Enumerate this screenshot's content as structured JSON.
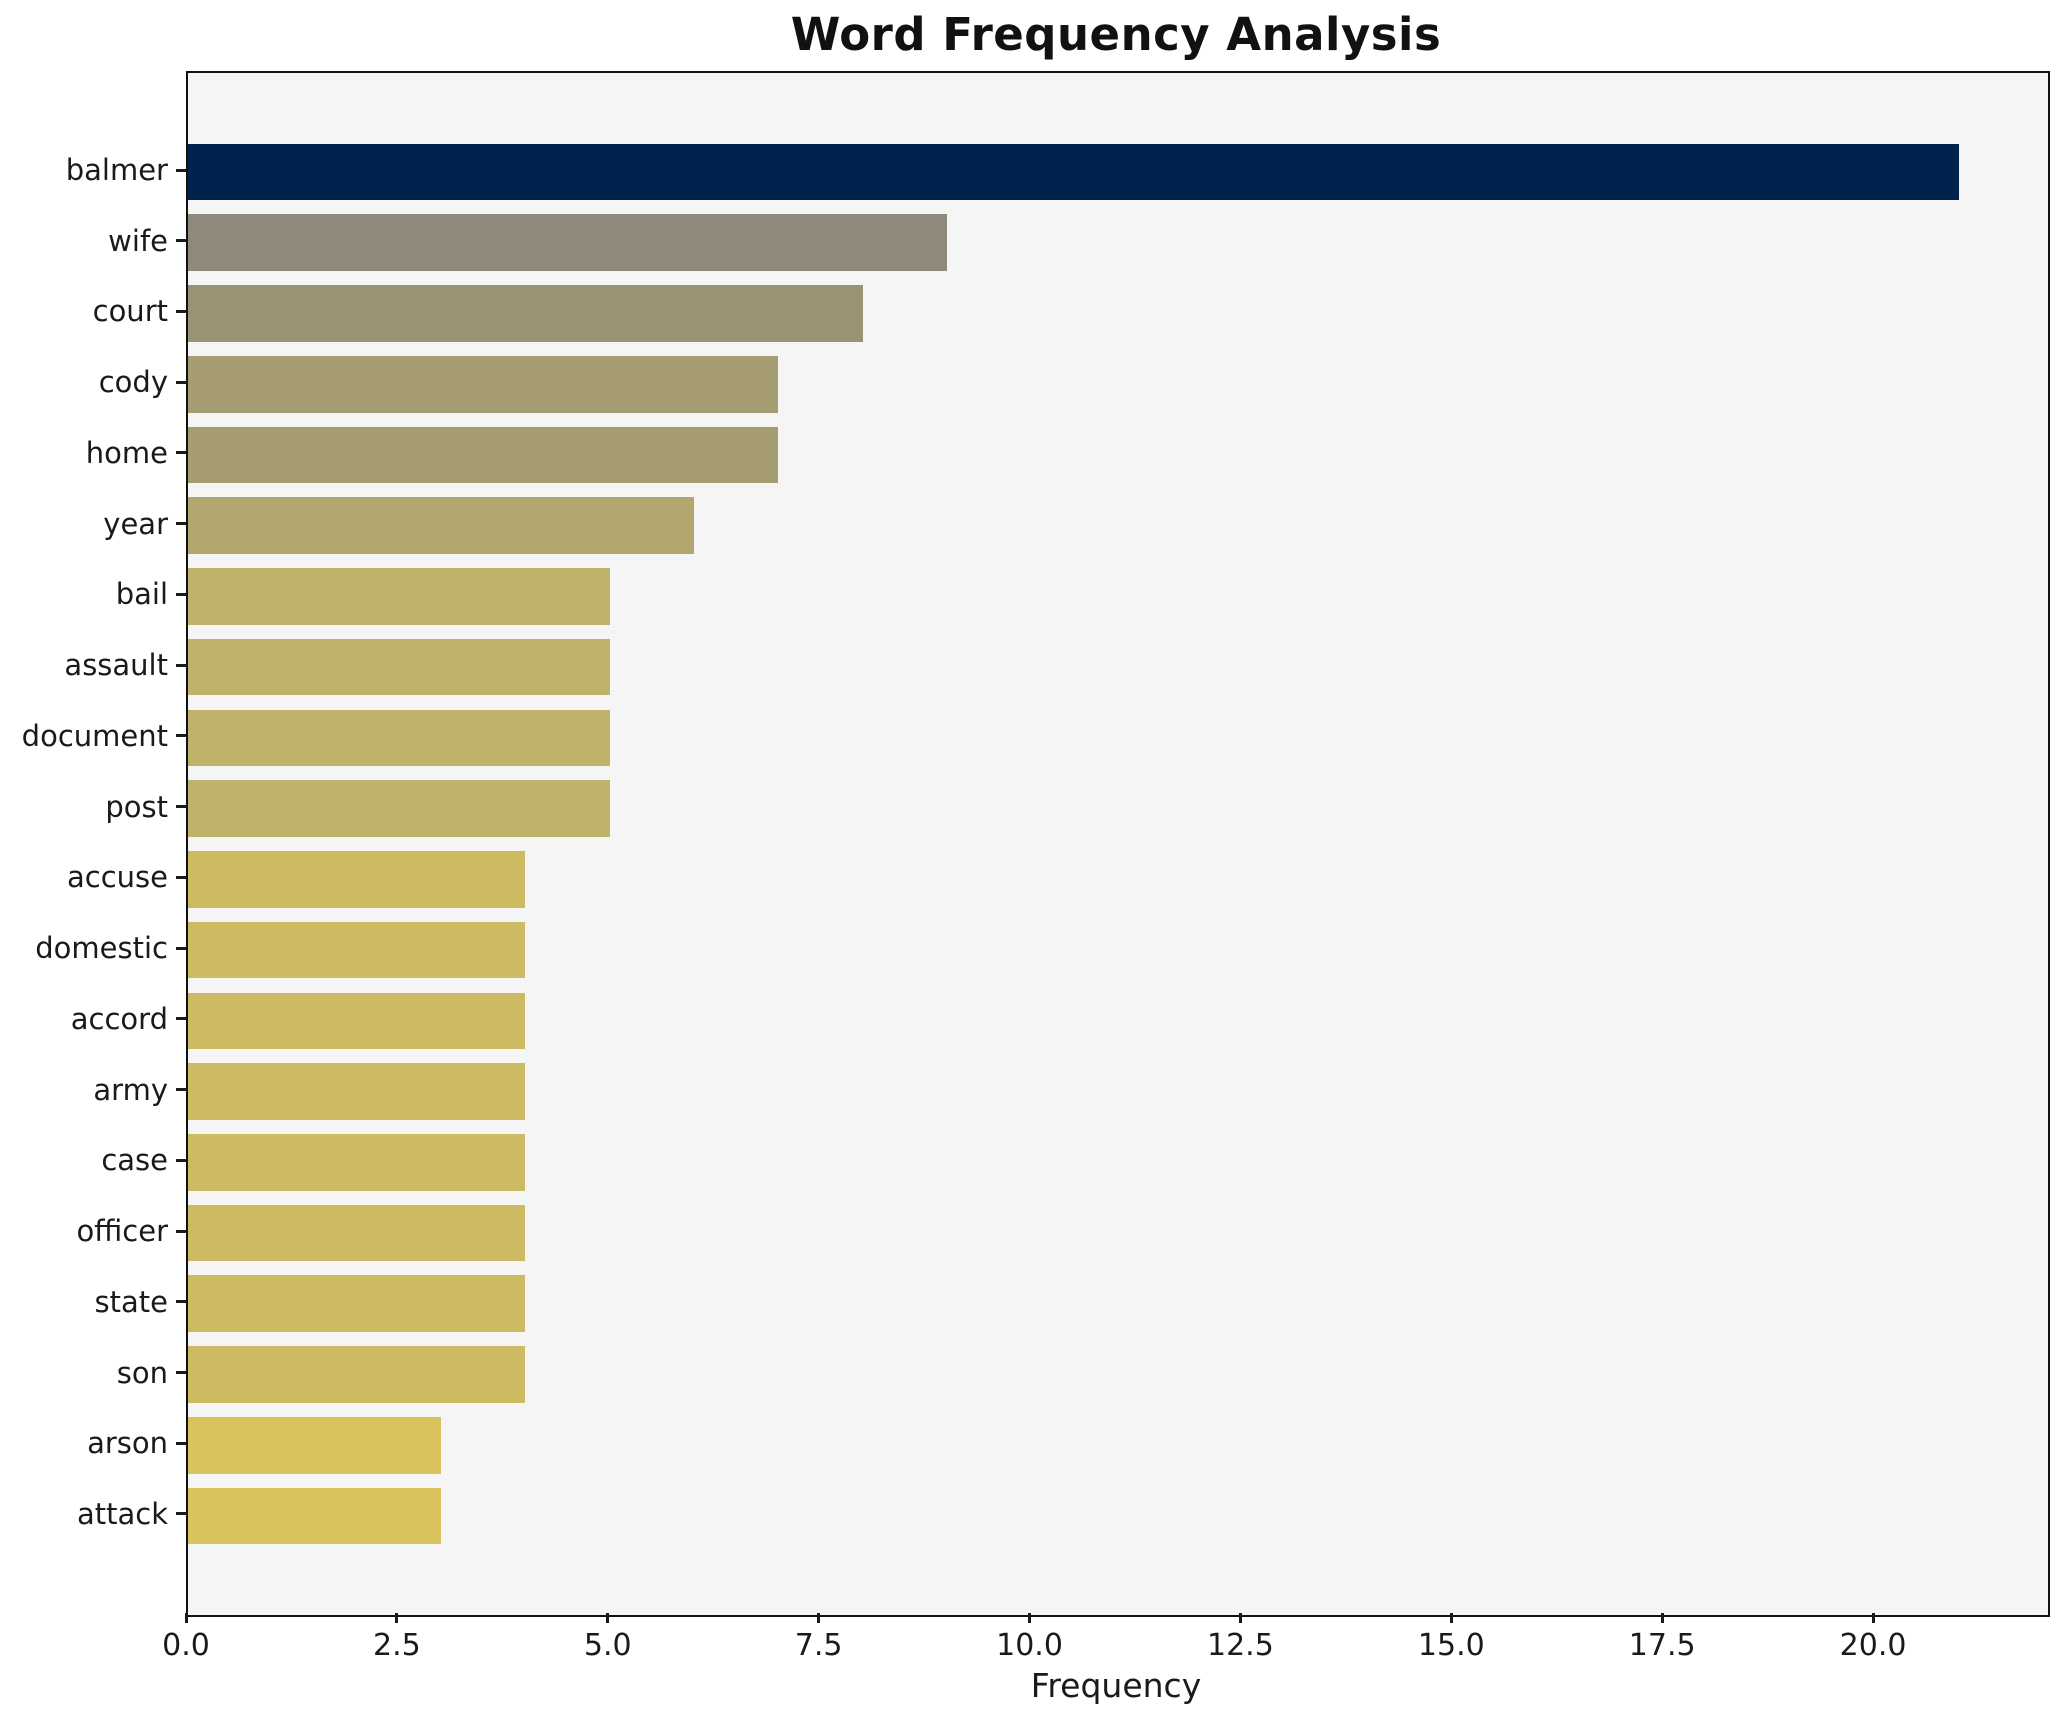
{
  "title": "Word Frequency Analysis",
  "chart_data": {
    "type": "bar",
    "orientation": "horizontal",
    "title": "Word Frequency Analysis",
    "xlabel": "Frequency",
    "ylabel": "",
    "categories": [
      "balmer",
      "wife",
      "court",
      "cody",
      "home",
      "year",
      "bail",
      "assault",
      "document",
      "post",
      "accuse",
      "domestic",
      "accord",
      "army",
      "case",
      "officer",
      "state",
      "son",
      "arson",
      "attack"
    ],
    "values": [
      21,
      9,
      8,
      7,
      7,
      6,
      5,
      5,
      5,
      5,
      4,
      4,
      4,
      4,
      4,
      4,
      4,
      4,
      3,
      3
    ],
    "bar_colors": [
      "#00234e",
      "#8e897a",
      "#999275",
      "#a59c72",
      "#a59c72",
      "#b1a76f",
      "#bfb26a",
      "#bfb26a",
      "#bfb26a",
      "#bfb26a",
      "#ccbb62",
      "#ccbb62",
      "#ccbb62",
      "#ccbb62",
      "#ccbb62",
      "#ccbb62",
      "#ccbb62",
      "#ccbb62",
      "#d9c35c",
      "#d9c35c"
    ],
    "xlim": [
      0,
      22.05
    ],
    "x_ticks": [
      0.0,
      2.5,
      5.0,
      7.5,
      10.0,
      12.5,
      15.0,
      17.5,
      20.0
    ],
    "x_tick_labels": [
      "0.0",
      "2.5",
      "5.0",
      "7.5",
      "10.0",
      "12.5",
      "15.0",
      "17.5",
      "20.0"
    ],
    "grid": false,
    "legend": null,
    "bar_height_fraction": 0.8,
    "plot_bg_color": "#f5f5f5",
    "figure_bg_color": "#ffffff",
    "spine_color": "#111111",
    "tick_color": "#1a1a1a",
    "title_color": "#111111"
  }
}
